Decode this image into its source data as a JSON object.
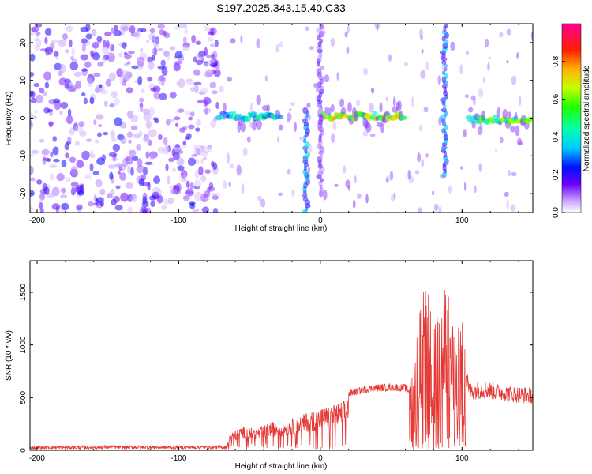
{
  "title": "S197.2025.343.15.40.C33",
  "chart_data": [
    {
      "type": "heatmap",
      "xlabel": "Height of straight line (km)",
      "ylabel": "Frequency (Hz)",
      "xlim": [
        -205,
        150
      ],
      "ylim": [
        -25,
        25
      ],
      "xticks": [
        -200,
        -100,
        0,
        100
      ],
      "yticks": [
        -20,
        -10,
        0,
        10,
        20
      ],
      "colorbar": {
        "label": "Normalized spectral amplitude",
        "range": [
          0,
          1
        ],
        "ticks": [
          "0.0",
          "0.2",
          "0.4",
          "0.6",
          "0.8"
        ],
        "colormap": "white-purple-blue-cyan-green-yellow-red-magenta"
      },
      "features": [
        {
          "name": "noise region",
          "x": [
            -205,
            -72
          ],
          "y": [
            -25,
            25
          ],
          "amplitude": 0.15
        },
        {
          "name": "signal band",
          "x": [
            -72,
            -27
          ],
          "y_center": 0.5,
          "amplitude": 0.4
        },
        {
          "name": "signal band",
          "x": [
            2,
            60
          ],
          "y_center": 0.5,
          "amplitude": 0.65
        },
        {
          "name": "signal band",
          "x": [
            105,
            150
          ],
          "y_center": -0.5,
          "amplitude": 0.55
        },
        {
          "name": "streak",
          "x": -10,
          "y": [
            -25,
            2
          ],
          "amplitude": 0.3
        },
        {
          "name": "streak",
          "x": 0,
          "y": [
            -20,
            25
          ],
          "amplitude": 0.15
        },
        {
          "name": "streak",
          "x": 88,
          "y": [
            -15,
            25
          ],
          "amplitude": 0.3
        }
      ]
    },
    {
      "type": "line",
      "xlabel": "Height of straight line (km)",
      "ylabel": "SNR (10 * v/v)",
      "xlim": [
        -205,
        150
      ],
      "ylim": [
        0,
        1800
      ],
      "xticks": [
        -200,
        -100,
        0,
        100
      ],
      "yticks": [
        0,
        500,
        1000,
        1500
      ],
      "color": "#e53935",
      "series": [
        {
          "x": [
            -205,
            -150,
            -100,
            -66,
            -64,
            -55,
            -45,
            -35,
            -25,
            -15,
            -8,
            0,
            10,
            18,
            20,
            30,
            40,
            50,
            60,
            63,
            65,
            70,
            75,
            80,
            85,
            90,
            95,
            100,
            105,
            115,
            130,
            150
          ],
          "y": [
            25,
            30,
            28,
            30,
            140,
            200,
            180,
            230,
            240,
            280,
            320,
            350,
            380,
            420,
            540,
            580,
            600,
            605,
            600,
            560,
            700,
            1100,
            1300,
            900,
            1200,
            1350,
            900,
            1000,
            560,
            580,
            540,
            520
          ]
        }
      ]
    }
  ]
}
